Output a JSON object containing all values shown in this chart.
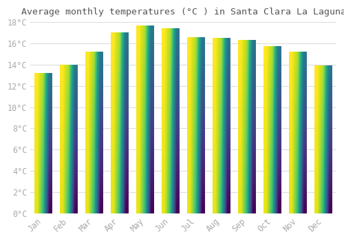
{
  "title": "Average monthly temperatures (°C ) in Santa Clara La Laguna",
  "months": [
    "Jan",
    "Feb",
    "Mar",
    "Apr",
    "May",
    "Jun",
    "Jul",
    "Aug",
    "Sep",
    "Oct",
    "Nov",
    "Dec"
  ],
  "values": [
    13.2,
    14.0,
    15.2,
    17.0,
    17.7,
    17.4,
    16.6,
    16.5,
    16.3,
    15.7,
    15.2,
    13.9
  ],
  "bar_color_bottom": "#F5A800",
  "bar_color_top": "#FFE066",
  "ylim": [
    0,
    18
  ],
  "yticks": [
    0,
    2,
    4,
    6,
    8,
    10,
    12,
    14,
    16,
    18
  ],
  "background_color": "#FFFFFF",
  "grid_color": "#DDDDDD",
  "tick_label_color": "#AAAAAA",
  "title_color": "#555555",
  "title_fontsize": 9.5,
  "tick_fontsize": 8.5,
  "font_family": "monospace",
  "bar_width": 0.7
}
